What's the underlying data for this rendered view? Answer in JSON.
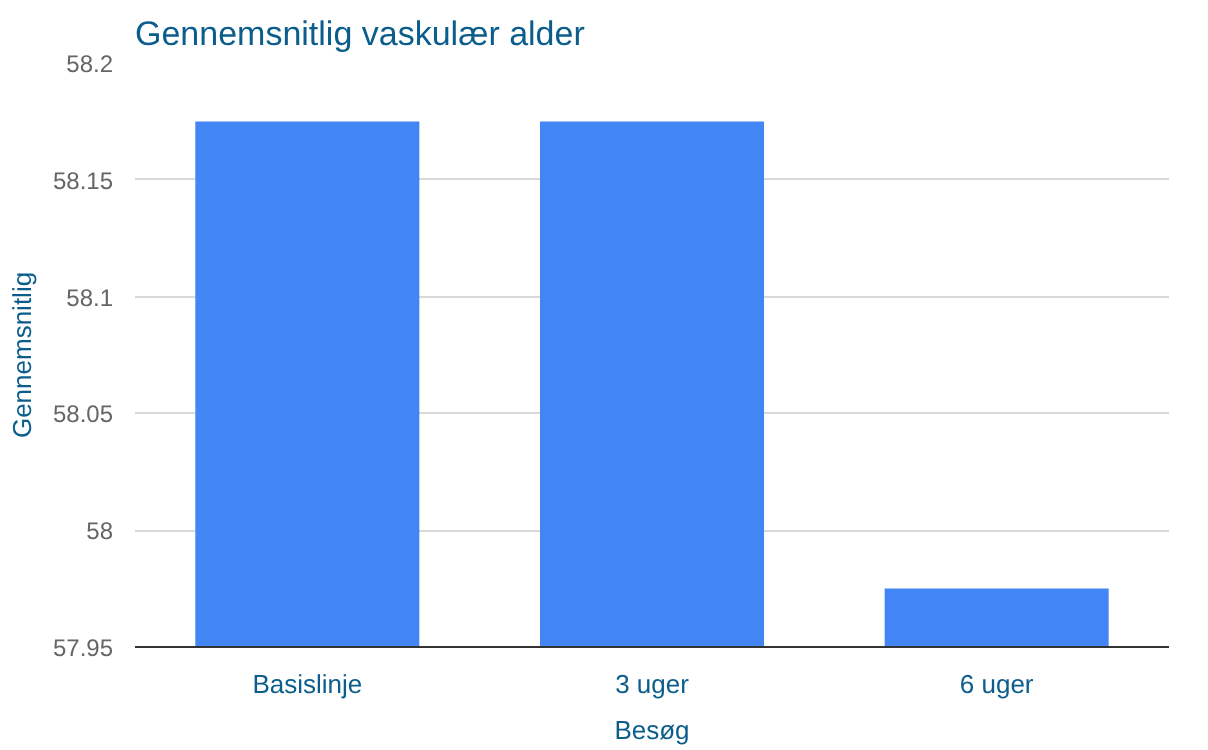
{
  "chart_data": {
    "type": "bar",
    "title": "Gennemsnitlig vaskulær alder",
    "xlabel": "Besøg",
    "ylabel": "Gennemsnitlig",
    "categories": [
      "Basislinje",
      "3 uger",
      "6 uger"
    ],
    "series": [
      {
        "color": "#4285f4",
        "values": [
          58.175,
          58.175,
          57.975
        ]
      }
    ],
    "ylim": [
      57.95,
      58.2
    ],
    "yticks": [
      57.95,
      58,
      58.05,
      58.1,
      58.15,
      58.2
    ],
    "grid": "y"
  }
}
